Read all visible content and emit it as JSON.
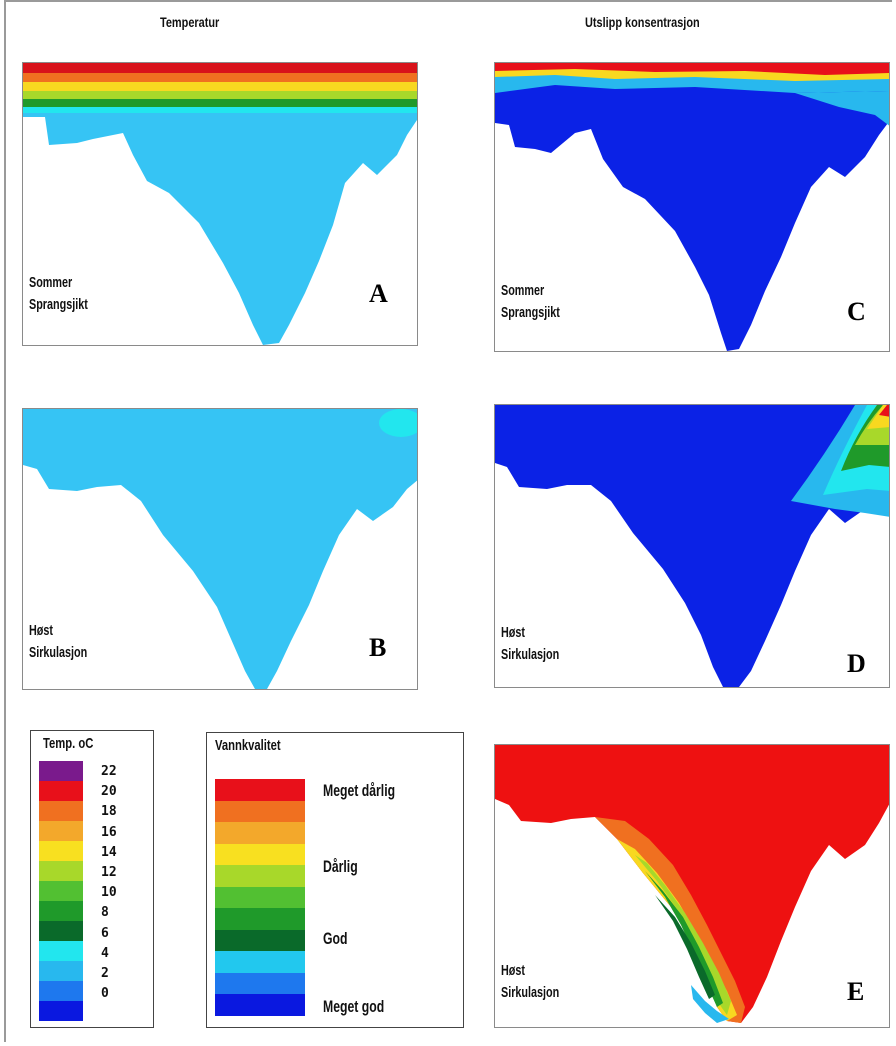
{
  "columns": {
    "left_title": "Temperatur",
    "right_title": "Utslipp konsentrasjon"
  },
  "panels": {
    "A": {
      "line1": "Sommer",
      "line2": "Sprangsjikt",
      "letter": "A"
    },
    "B": {
      "line1": "Høst",
      "line2": "Sirkulasjon",
      "letter": "B"
    },
    "C": {
      "line1": "Sommer",
      "line2": "Sprangsjikt",
      "letter": "C"
    },
    "D": {
      "line1": "Høst",
      "line2": "Sirkulasjon",
      "letter": "D"
    },
    "E": {
      "line1": "Høst",
      "line2": "Sirkulasjon",
      "letter": "E"
    }
  },
  "temp_legend": {
    "title": "Temp. oC",
    "ticks": [
      "22",
      "20",
      "18",
      "16",
      "14",
      "12",
      "10",
      "8",
      "6",
      "4",
      "2",
      "0"
    ],
    "colors": [
      "#7a1a8c",
      "#e8101a",
      "#f07020",
      "#f3a82b",
      "#f8e020",
      "#a8d82a",
      "#52c032",
      "#1f9a2a",
      "#0a6a2a",
      "#22e6ee",
      "#28b8ee",
      "#1e78ee",
      "#0a18e0"
    ]
  },
  "quality_legend": {
    "title": "Vannkvalitet",
    "labels": [
      "Meget dårlig",
      "Dårlig",
      "God",
      "Meget god"
    ],
    "colors": [
      "#e8101a",
      "#f07020",
      "#f3a82b",
      "#f8e020",
      "#a8d82a",
      "#52c032",
      "#1f9a2a",
      "#0a6a2a",
      "#22c8ee",
      "#1e78ee",
      "#0a18e0"
    ]
  },
  "palette": {
    "cyan": "#36c4f4",
    "deep_blue": "#0b22e6",
    "red": "#ee1111"
  }
}
